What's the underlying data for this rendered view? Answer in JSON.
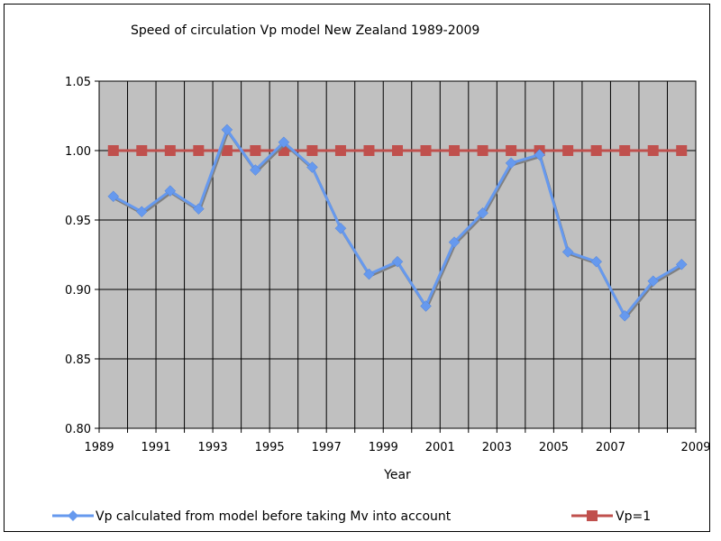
{
  "chart_data": {
    "type": "line",
    "title": "Speed of circulation Vp model New Zealand 1989-2009",
    "xlabel": "Year",
    "ylabel": "",
    "x": [
      1989,
      1990,
      1991,
      1992,
      1993,
      1994,
      1995,
      1996,
      1997,
      1998,
      1999,
      2000,
      2001,
      2002,
      2003,
      2004,
      2005,
      2006,
      2007,
      2008,
      2009
    ],
    "x_tick_labels": [
      "1989",
      "1991",
      "1993",
      "1995",
      "1997",
      "1999",
      "2001",
      "2003",
      "2005",
      "2007",
      "2009"
    ],
    "y_tick_labels": [
      "0.80",
      "0.85",
      "0.90",
      "0.95",
      "1.00",
      "1.05"
    ],
    "ylim": [
      0.8,
      1.05
    ],
    "ystep": 0.05,
    "grid": true,
    "legend_position": "bottom",
    "series": [
      {
        "name": "Vp calculated from model before taking Mv into account",
        "color": "#6699ee",
        "marker": "diamond",
        "values": [
          0.967,
          0.956,
          0.971,
          0.958,
          1.015,
          0.986,
          1.006,
          0.988,
          0.944,
          0.911,
          0.92,
          0.888,
          0.934,
          0.955,
          0.991,
          0.997,
          0.927,
          0.92,
          0.881,
          0.906,
          0.918
        ]
      },
      {
        "name": "Vp=1",
        "color": "#c0504d",
        "marker": "square",
        "values": [
          1,
          1,
          1,
          1,
          1,
          1,
          1,
          1,
          1,
          1,
          1,
          1,
          1,
          1,
          1,
          1,
          1,
          1,
          1,
          1,
          1
        ]
      }
    ]
  }
}
